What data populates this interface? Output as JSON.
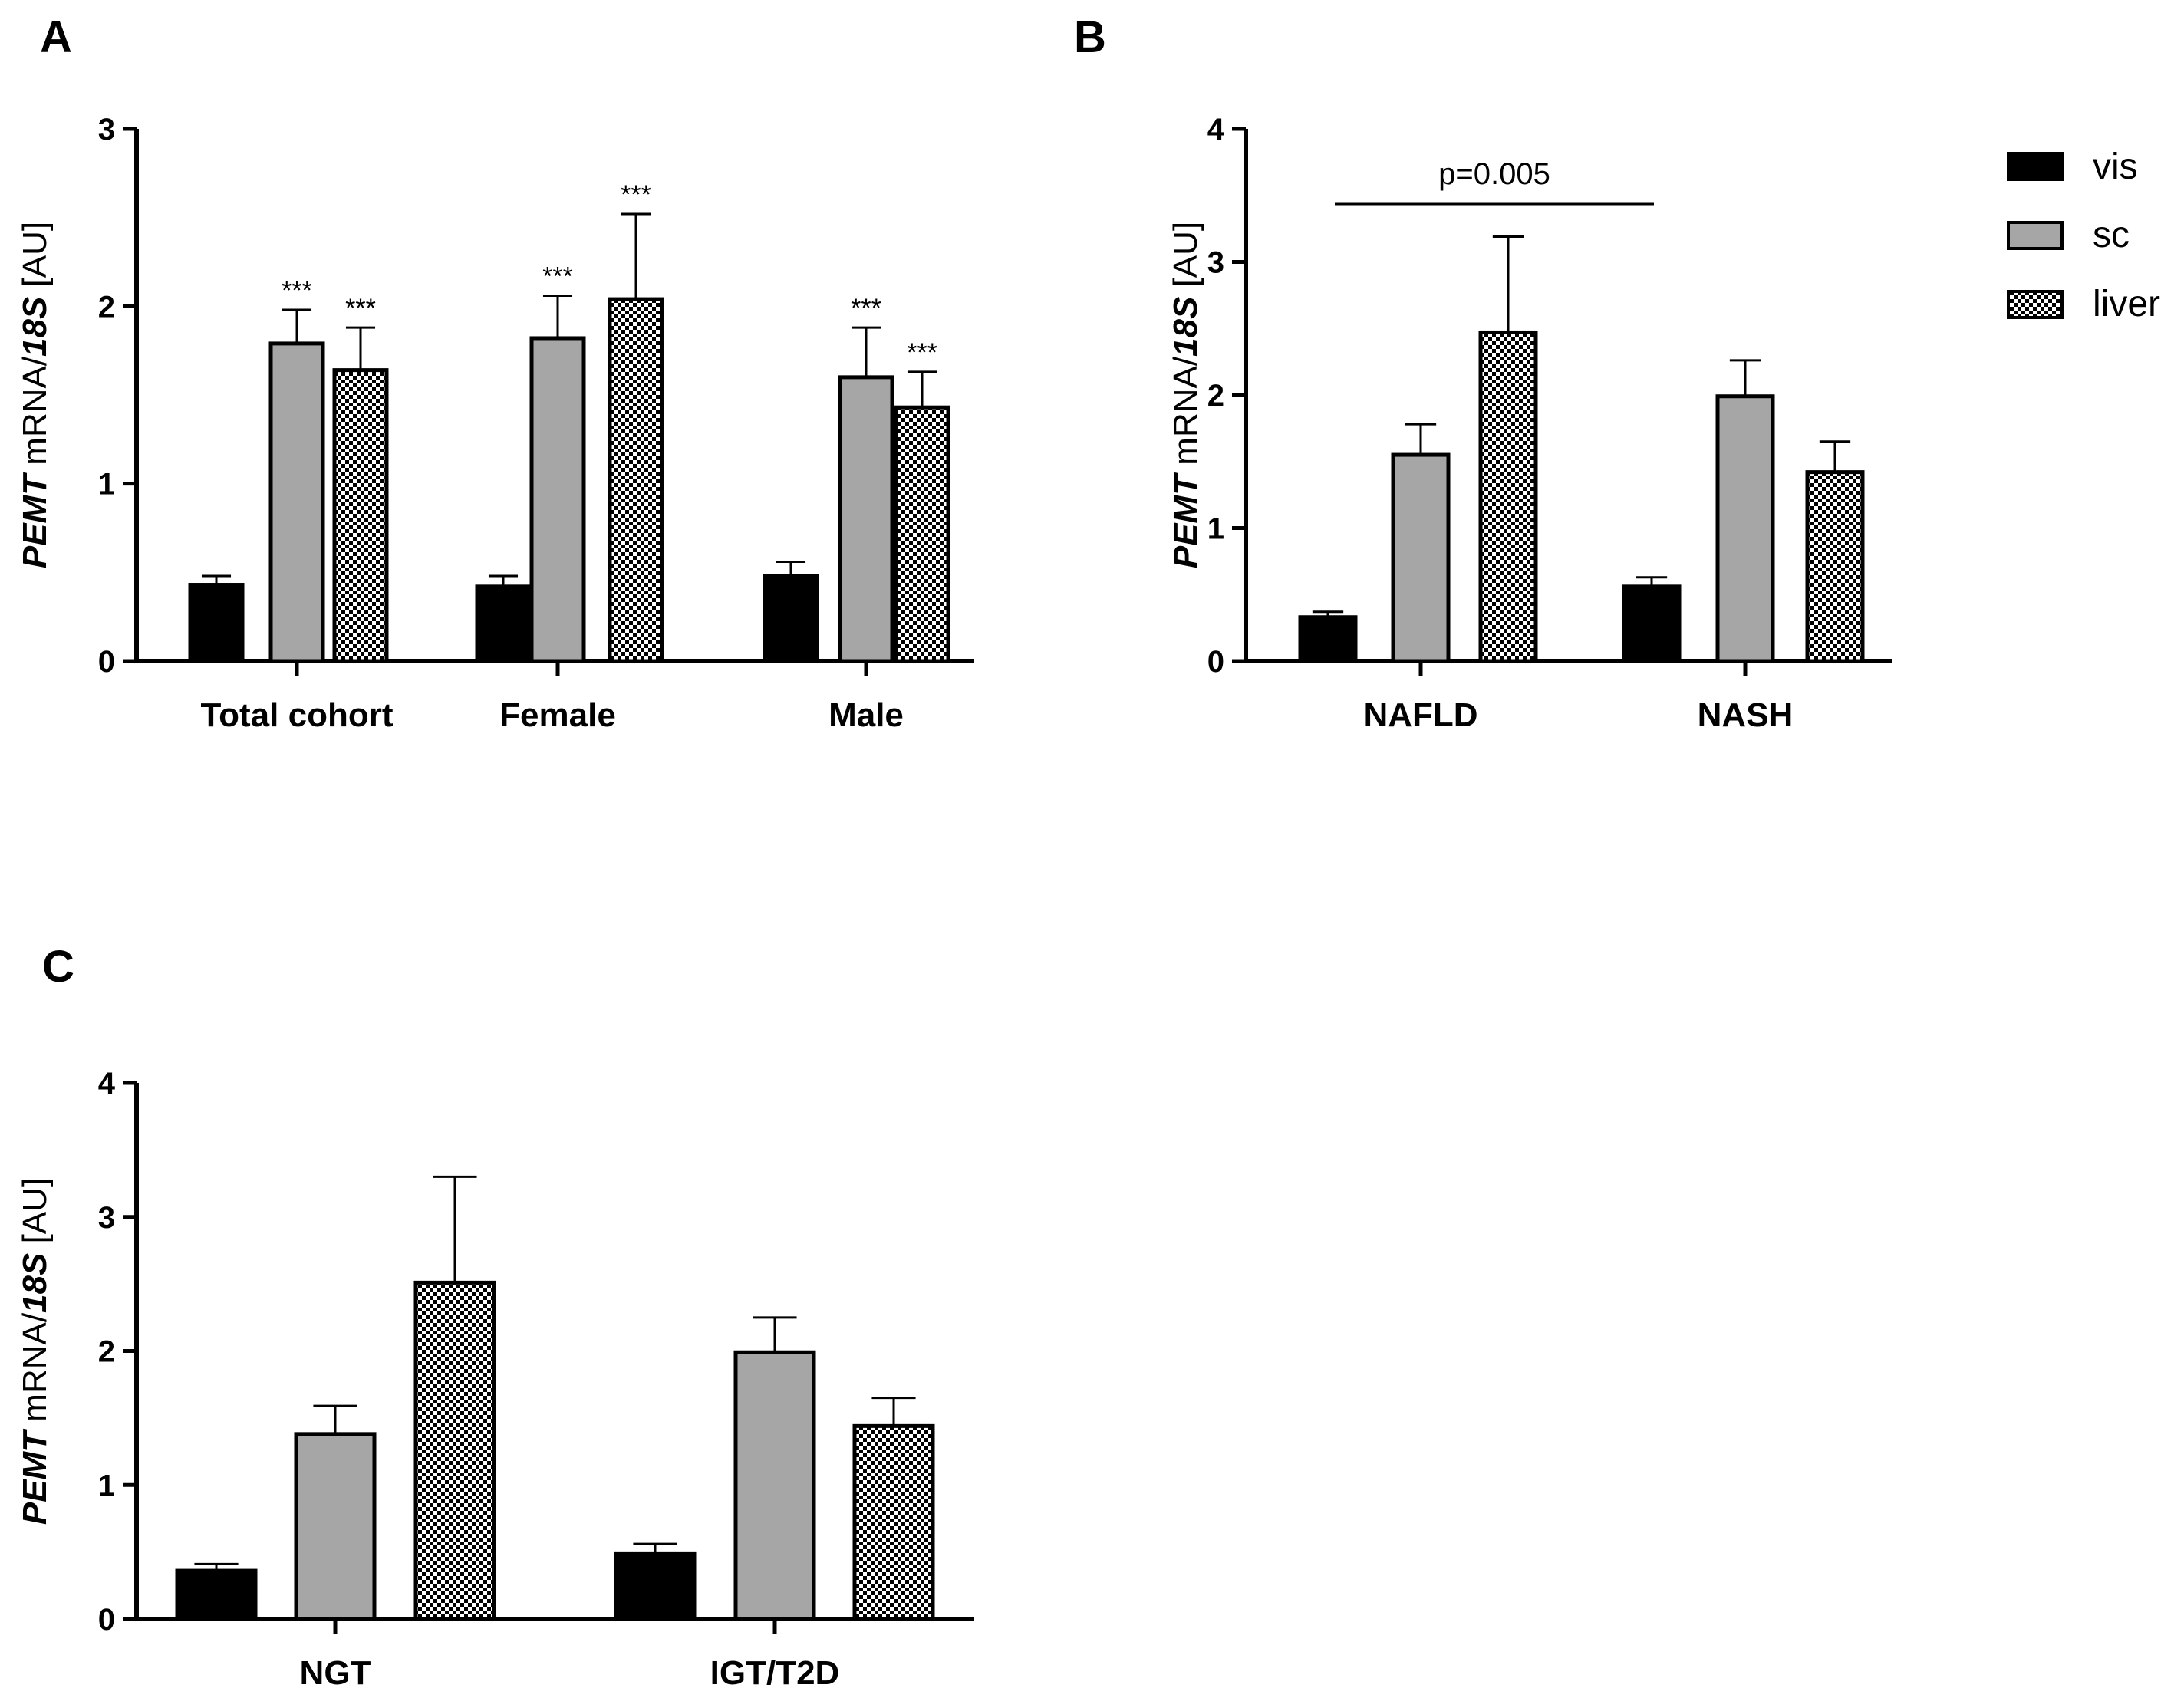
{
  "figure": {
    "panels": [
      "A",
      "B",
      "C"
    ]
  },
  "legend": {
    "items": [
      {
        "name": "vis",
        "fill": "#000000"
      },
      {
        "name": "sc",
        "fill": "#a6a6a6"
      },
      {
        "name": "liver",
        "fill": "pattern"
      }
    ]
  },
  "chart_data": [
    {
      "panel": "A",
      "type": "bar",
      "ylabel_italic_1": "PEMT",
      "ylabel_plain_1": " mRNA/",
      "ylabel_italic_2": "18S",
      "ylabel_plain_2": " [AU]",
      "ylim": [
        0,
        3
      ],
      "yticks": [
        "0",
        "1",
        "2",
        "3"
      ],
      "categories": [
        "Total cohort",
        "Female",
        "Male"
      ],
      "series": [
        {
          "name": "vis",
          "values": [
            0.43,
            0.42,
            0.48
          ],
          "errors": [
            0.05,
            0.06,
            0.08
          ],
          "sig": [
            "",
            "",
            ""
          ]
        },
        {
          "name": "sc",
          "values": [
            1.79,
            1.82,
            1.6
          ],
          "errors": [
            0.19,
            0.24,
            0.28
          ],
          "sig": [
            "***",
            "***",
            "***"
          ]
        },
        {
          "name": "liver",
          "values": [
            1.64,
            2.04,
            1.43
          ],
          "errors": [
            0.24,
            0.48,
            0.2
          ],
          "sig": [
            "***",
            "***",
            "***"
          ]
        }
      ]
    },
    {
      "panel": "B",
      "type": "bar",
      "ylabel_italic_1": "PEMT",
      "ylabel_plain_1": " mRNA/",
      "ylabel_italic_2": "18S",
      "ylabel_plain_2": " [AU]",
      "ylim": [
        0,
        4
      ],
      "yticks": [
        "0",
        "1",
        "2",
        "3",
        "4"
      ],
      "categories": [
        "NAFLD",
        "NASH"
      ],
      "annotation": "p=0.005",
      "series": [
        {
          "name": "vis",
          "values": [
            0.33,
            0.56
          ],
          "errors": [
            0.04,
            0.07
          ]
        },
        {
          "name": "sc",
          "values": [
            1.55,
            1.99
          ],
          "errors": [
            0.23,
            0.27
          ]
        },
        {
          "name": "liver",
          "values": [
            2.47,
            1.42
          ],
          "errors": [
            0.72,
            0.23
          ]
        }
      ]
    },
    {
      "panel": "C",
      "type": "bar",
      "ylabel_italic_1": "PEMT",
      "ylabel_plain_1": " mRNA/",
      "ylabel_italic_2": "18S",
      "ylabel_plain_2": " [AU]",
      "ylim": [
        0,
        4
      ],
      "yticks": [
        "0",
        "1",
        "2",
        "3",
        "4"
      ],
      "categories": [
        "NGT",
        "IGT/T2D"
      ],
      "series": [
        {
          "name": "vis",
          "values": [
            0.36,
            0.49
          ],
          "errors": [
            0.05,
            0.07
          ]
        },
        {
          "name": "sc",
          "values": [
            1.38,
            1.99
          ],
          "errors": [
            0.21,
            0.26
          ]
        },
        {
          "name": "liver",
          "values": [
            2.51,
            1.44
          ],
          "errors": [
            0.79,
            0.21
          ]
        }
      ]
    }
  ]
}
